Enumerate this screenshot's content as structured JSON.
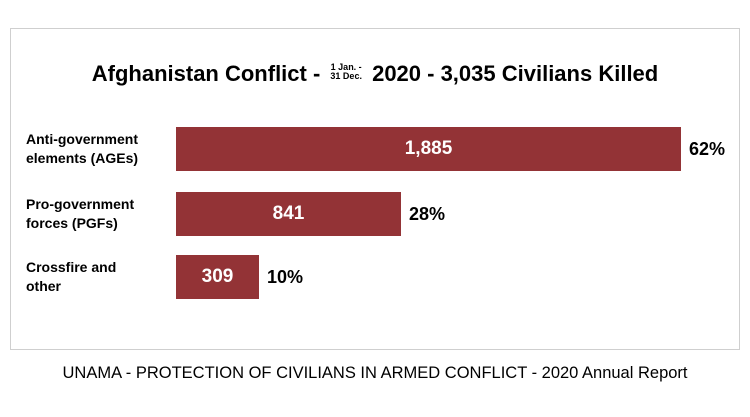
{
  "title": {
    "main": "Afghanistan Conflict -",
    "date_top": "1 Jan. -",
    "date_bottom": "31 Dec.",
    "rest": "2020 - 3,035 Civilians Killed"
  },
  "source": "UNAMA - PROTECTION OF CIVILIANS IN ARMED CONFLICT - 2020 Annual Report",
  "colors": {
    "bar": "#933336",
    "bar_label": "#ffffff"
  },
  "chart_data": {
    "type": "bar",
    "orientation": "horizontal",
    "title": "Afghanistan Conflict - 1 Jan. - 31 Dec. 2020 - 3,035 Civilians Killed",
    "categories": [
      {
        "line1": "Anti-government",
        "line2": "elements (AGEs)"
      },
      {
        "line1": "Pro-government",
        "line2": "forces (PGFs)"
      },
      {
        "line1": "Crossfire and",
        "line2": "other"
      }
    ],
    "values": [
      1885,
      841,
      309
    ],
    "value_labels": [
      "1,885",
      "841",
      "309"
    ],
    "percent_labels": [
      "62%",
      "28%",
      "10%"
    ],
    "xlim": [
      0,
      1885
    ],
    "grid": false,
    "legend": "none"
  }
}
